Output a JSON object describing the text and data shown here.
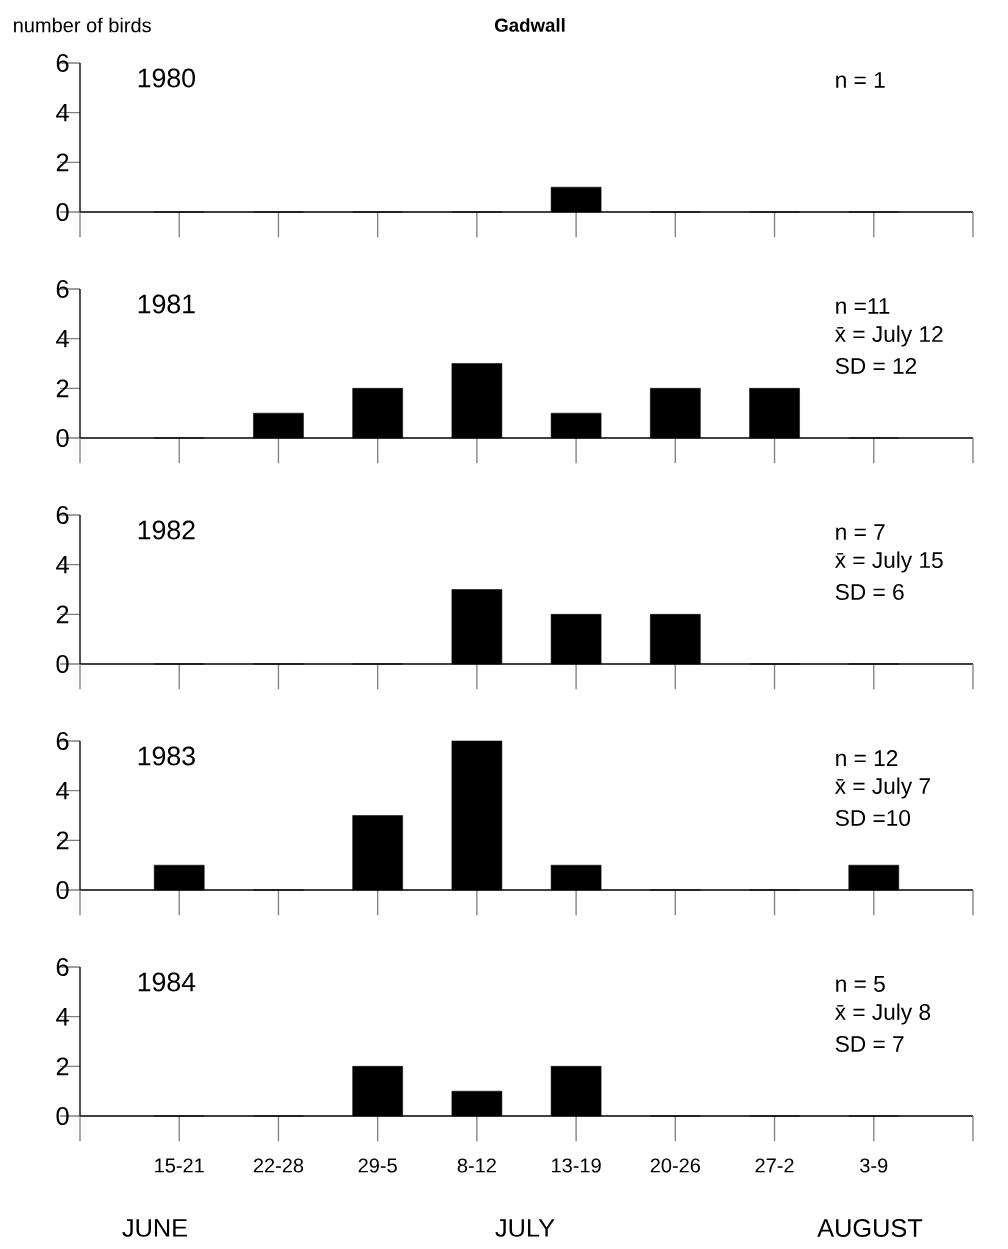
{
  "chart_data": [
    {
      "type": "bar",
      "title": "Gadwall",
      "ylabel": "number of birds",
      "subtitle": "1980",
      "categories": [
        null,
        null,
        null,
        null,
        null,
        null,
        null,
        null
      ],
      "values": [
        0,
        0,
        0,
        0,
        1,
        0,
        0,
        0
      ],
      "color": "#000000",
      "ylim": [
        0,
        6
      ],
      "yticks": [
        0,
        2,
        4,
        6
      ],
      "tick_labels": "y",
      "annotations": [
        "n = 1"
      ]
    },
    {
      "type": "bar",
      "subtitle": "1981",
      "categories": [
        null,
        null,
        null,
        null,
        null,
        null,
        null,
        null
      ],
      "values": [
        0,
        1,
        2,
        3,
        1,
        2,
        2,
        0
      ],
      "color": "#000000",
      "ylim": [
        0,
        6
      ],
      "yticks": [
        0,
        2,
        4,
        6
      ],
      "tick_labels": "y",
      "annotations": [
        "n =11",
        "x̄ = July 12",
        "SD = 12"
      ]
    },
    {
      "type": "bar",
      "subtitle": "1982",
      "categories": [
        null,
        null,
        null,
        null,
        null,
        null,
        null,
        null
      ],
      "values": [
        0,
        0,
        0,
        3,
        2,
        2,
        0,
        0
      ],
      "color": "#000000",
      "ylim": [
        0,
        6
      ],
      "yticks": [
        0,
        2,
        4,
        6
      ],
      "tick_labels": "y",
      "annotations": [
        "n = 7",
        "x̄ = July 15",
        "SD = 6"
      ]
    },
    {
      "type": "bar",
      "subtitle": "1983",
      "categories": [
        null,
        null,
        null,
        null,
        null,
        null,
        null,
        null
      ],
      "values": [
        1,
        0,
        3,
        6,
        1,
        0,
        0,
        1
      ],
      "color": "#000000",
      "ylim": [
        0,
        6
      ],
      "yticks": [
        0,
        2,
        4,
        6
      ],
      "tick_labels": "y",
      "annotations": [
        "n = 12",
        "x̄ = July 7",
        "SD =10"
      ]
    },
    {
      "type": "bar",
      "subtitle": "1984",
      "categories": [
        "15-21",
        "22-28",
        "29-5",
        "8-12",
        "13-19",
        "20-26",
        "27-2",
        "3-9"
      ],
      "values": [
        0,
        0,
        2,
        1,
        2,
        0,
        0,
        0
      ],
      "color": "#000000",
      "ylim": [
        0,
        6
      ],
      "yticks": [
        0,
        2,
        4,
        6
      ],
      "annotations": [
        "n = 5",
        "x̄ = July 8",
        "SD = 7",
        "JUNE",
        "JULY",
        "AUGUST"
      ]
    }
  ]
}
